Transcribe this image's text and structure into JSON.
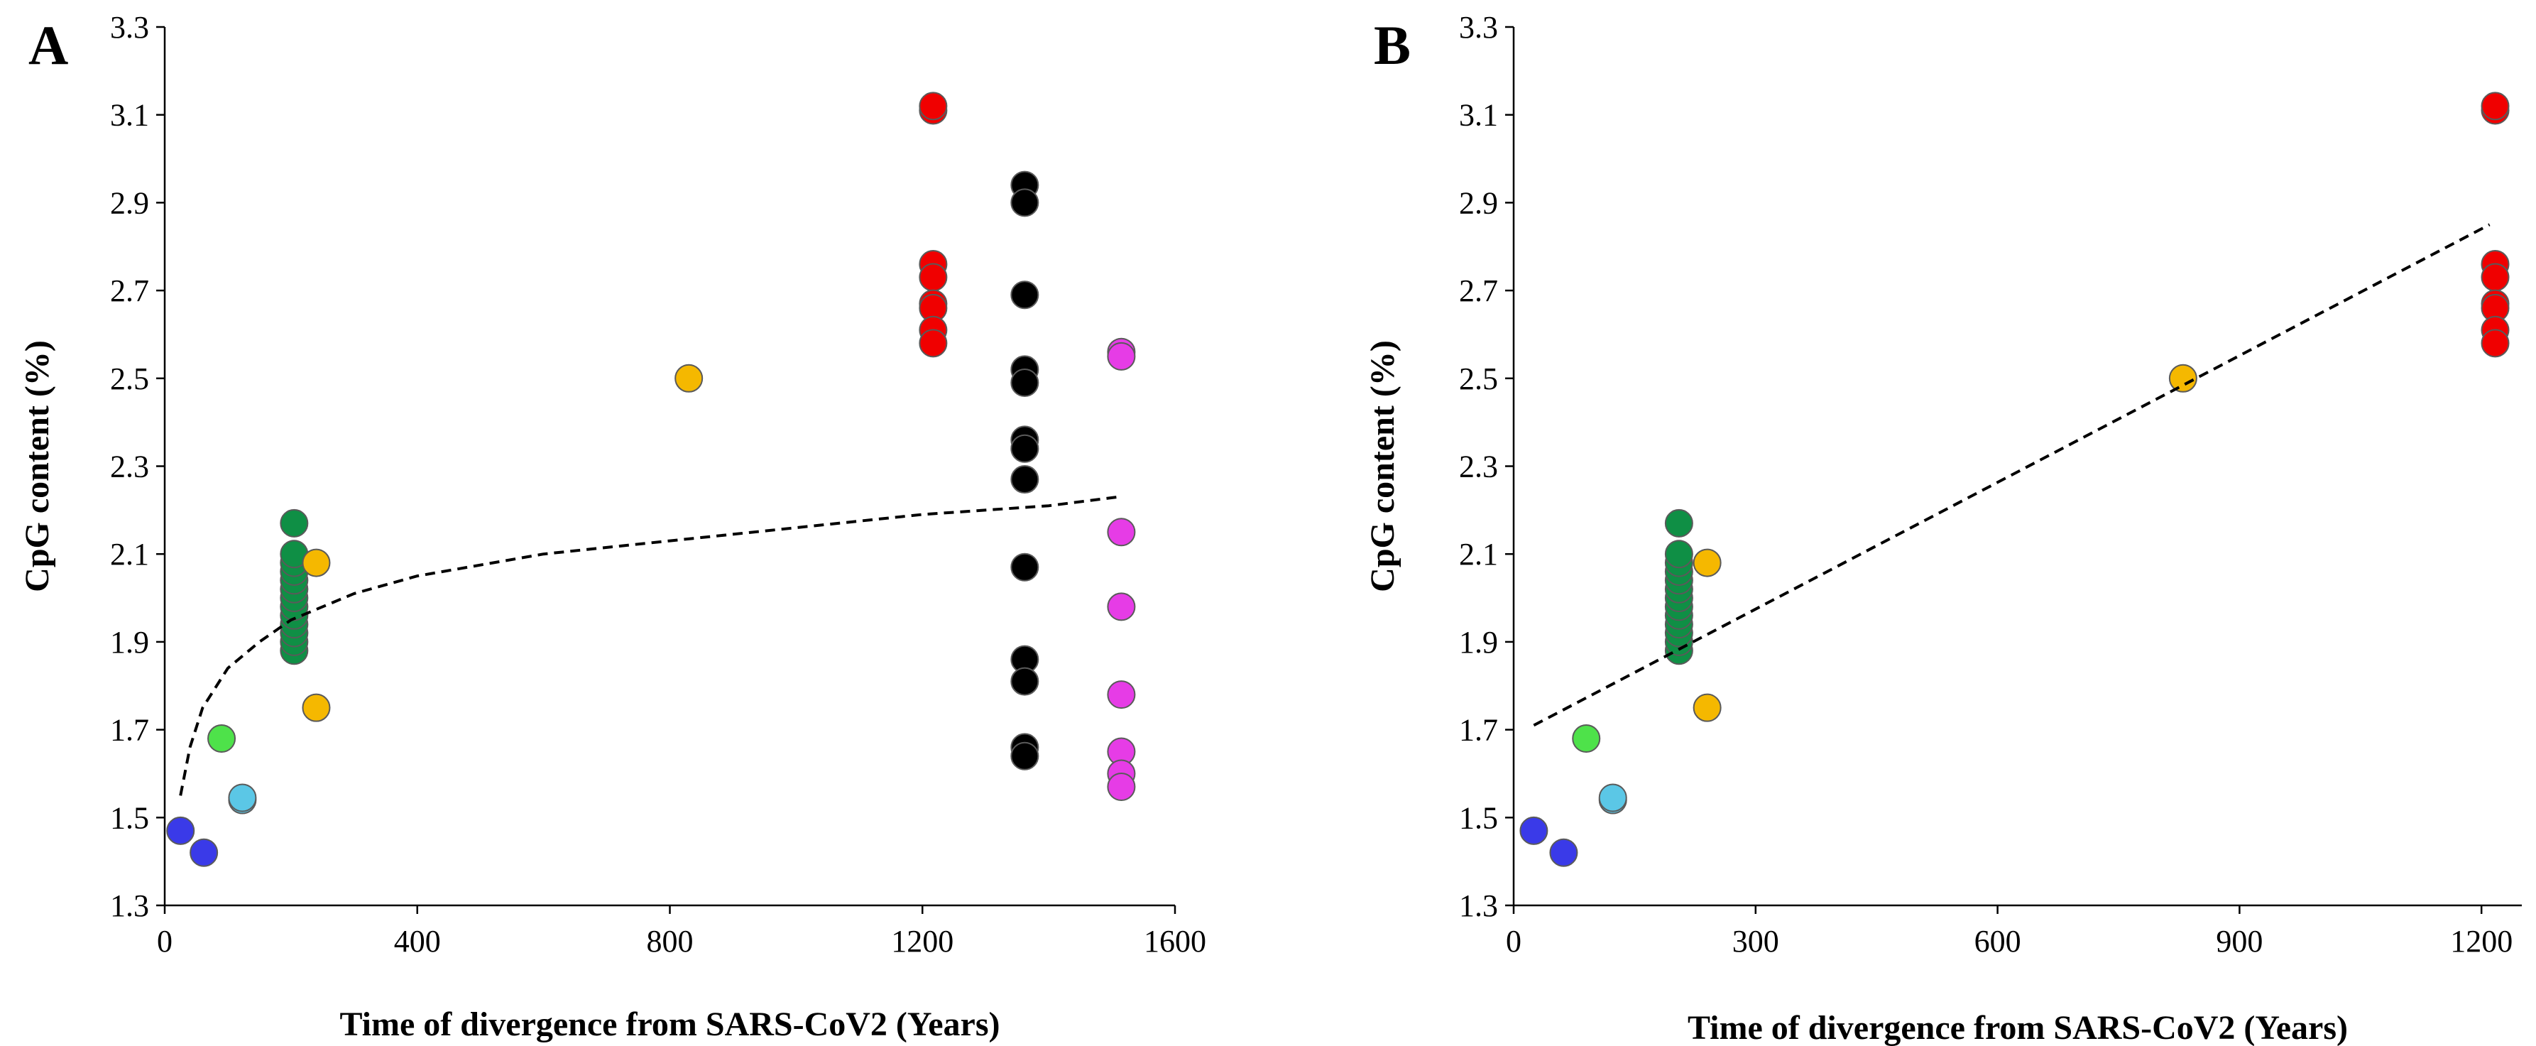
{
  "chart_data": [
    {
      "type": "scatter",
      "panel": "A",
      "xlabel": "Time of divergence from SARS-CoV2 (Years)",
      "ylabel": "CpG content (%)",
      "xlim": [
        0,
        1600
      ],
      "ylim": [
        1.3,
        3.3
      ],
      "xticks": [
        0,
        400,
        800,
        1200,
        1600
      ],
      "yticks": [
        1.3,
        1.5,
        1.7,
        1.9,
        2.1,
        2.3,
        2.5,
        2.7,
        2.9,
        3.1,
        3.3
      ],
      "ytick_labels": [
        "1.3",
        "1.5",
        "1.7",
        "1.9",
        "2.1",
        "2.3",
        "2.5",
        "2.7",
        "2.9",
        "3.1",
        "3.3"
      ],
      "grid": false,
      "trendline": {
        "type": "logarithmic",
        "style": "dashed",
        "color": "#000000",
        "points": [
          [
            25,
            1.55
          ],
          [
            40,
            1.66
          ],
          [
            60,
            1.75
          ],
          [
            100,
            1.84
          ],
          [
            150,
            1.9
          ],
          [
            200,
            1.95
          ],
          [
            300,
            2.01
          ],
          [
            400,
            2.05
          ],
          [
            600,
            2.1
          ],
          [
            800,
            2.13
          ],
          [
            1000,
            2.16
          ],
          [
            1200,
            2.19
          ],
          [
            1400,
            2.21
          ],
          [
            1510,
            2.23
          ]
        ]
      },
      "series": [
        {
          "name": "blue",
          "color": "#3a3ae8",
          "points": [
            [
              25,
              1.47
            ],
            [
              62,
              1.42
            ]
          ]
        },
        {
          "name": "green",
          "color": "#4ee24a",
          "points": [
            [
              90,
              1.68
            ]
          ]
        },
        {
          "name": "cyan",
          "color": "#5bc7e6",
          "points": [
            [
              123,
              1.54
            ],
            [
              123,
              1.545
            ]
          ]
        },
        {
          "name": "dark-green",
          "color": "#0f8f45",
          "points": [
            [
              205,
              1.88
            ],
            [
              205,
              1.9
            ],
            [
              205,
              1.92
            ],
            [
              205,
              1.94
            ],
            [
              205,
              1.96
            ],
            [
              205,
              1.98
            ],
            [
              205,
              2.0
            ],
            [
              205,
              2.02
            ],
            [
              205,
              2.04
            ],
            [
              205,
              2.06
            ],
            [
              205,
              2.08
            ],
            [
              205,
              2.1
            ],
            [
              205,
              2.17
            ]
          ]
        },
        {
          "name": "orange",
          "color": "#f5b800",
          "points": [
            [
              240,
              2.08
            ],
            [
              240,
              1.75
            ],
            [
              830,
              2.5
            ]
          ]
        },
        {
          "name": "red",
          "color": "#f00000",
          "points": [
            [
              1217,
              3.11
            ],
            [
              1217,
              3.12
            ],
            [
              1217,
              2.76
            ],
            [
              1217,
              2.73
            ],
            [
              1217,
              2.67
            ],
            [
              1217,
              2.66
            ],
            [
              1217,
              2.61
            ],
            [
              1217,
              2.58
            ]
          ]
        },
        {
          "name": "black",
          "color": "#000000",
          "points": [
            [
              1362,
              2.94
            ],
            [
              1362,
              2.9
            ],
            [
              1362,
              2.69
            ],
            [
              1362,
              2.52
            ],
            [
              1362,
              2.49
            ],
            [
              1362,
              2.36
            ],
            [
              1362,
              2.34
            ],
            [
              1362,
              2.27
            ],
            [
              1362,
              2.07
            ],
            [
              1362,
              1.86
            ],
            [
              1362,
              1.81
            ],
            [
              1362,
              1.66
            ],
            [
              1362,
              1.64
            ]
          ]
        },
        {
          "name": "magenta",
          "color": "#e63ce6",
          "points": [
            [
              1515,
              2.56
            ],
            [
              1515,
              2.55
            ],
            [
              1515,
              2.15
            ],
            [
              1515,
              1.98
            ],
            [
              1515,
              1.78
            ],
            [
              1515,
              1.65
            ],
            [
              1515,
              1.6
            ],
            [
              1515,
              1.57
            ]
          ]
        }
      ]
    },
    {
      "type": "scatter",
      "panel": "B",
      "xlabel": "Time of divergence from SARS-CoV2 (Years)",
      "ylabel": "CpG content (%)",
      "xlim": [
        0,
        1250
      ],
      "ylim": [
        1.3,
        3.3
      ],
      "xticks": [
        0,
        300,
        600,
        900,
        1200
      ],
      "yticks": [
        1.3,
        1.5,
        1.7,
        1.9,
        2.1,
        2.3,
        2.5,
        2.7,
        2.9,
        3.1,
        3.3
      ],
      "ytick_labels": [
        "1.3",
        "1.5",
        "1.7",
        "1.9",
        "2.1",
        "2.3",
        "2.5",
        "2.7",
        "2.9",
        "3.1",
        "3.3"
      ],
      "grid": false,
      "trendline": {
        "type": "linear",
        "style": "dashed",
        "color": "#000000",
        "points": [
          [
            25,
            1.71
          ],
          [
            1210,
            2.85
          ]
        ]
      },
      "series": [
        {
          "name": "blue",
          "color": "#3a3ae8",
          "points": [
            [
              25,
              1.47
            ],
            [
              62,
              1.42
            ]
          ]
        },
        {
          "name": "green",
          "color": "#4ee24a",
          "points": [
            [
              90,
              1.68
            ]
          ]
        },
        {
          "name": "cyan",
          "color": "#5bc7e6",
          "points": [
            [
              123,
              1.54
            ],
            [
              123,
              1.545
            ]
          ]
        },
        {
          "name": "dark-green",
          "color": "#0f8f45",
          "points": [
            [
              205,
              1.88
            ],
            [
              205,
              1.9
            ],
            [
              205,
              1.92
            ],
            [
              205,
              1.94
            ],
            [
              205,
              1.96
            ],
            [
              205,
              1.98
            ],
            [
              205,
              2.0
            ],
            [
              205,
              2.02
            ],
            [
              205,
              2.04
            ],
            [
              205,
              2.06
            ],
            [
              205,
              2.08
            ],
            [
              205,
              2.1
            ],
            [
              205,
              2.17
            ]
          ]
        },
        {
          "name": "orange",
          "color": "#f5b800",
          "points": [
            [
              240,
              2.08
            ],
            [
              240,
              1.75
            ],
            [
              830,
              2.5
            ]
          ]
        },
        {
          "name": "red",
          "color": "#f00000",
          "points": [
            [
              1217,
              3.11
            ],
            [
              1217,
              3.12
            ],
            [
              1217,
              2.76
            ],
            [
              1217,
              2.73
            ],
            [
              1217,
              2.67
            ],
            [
              1217,
              2.66
            ],
            [
              1217,
              2.61
            ],
            [
              1217,
              2.58
            ]
          ]
        }
      ]
    }
  ]
}
